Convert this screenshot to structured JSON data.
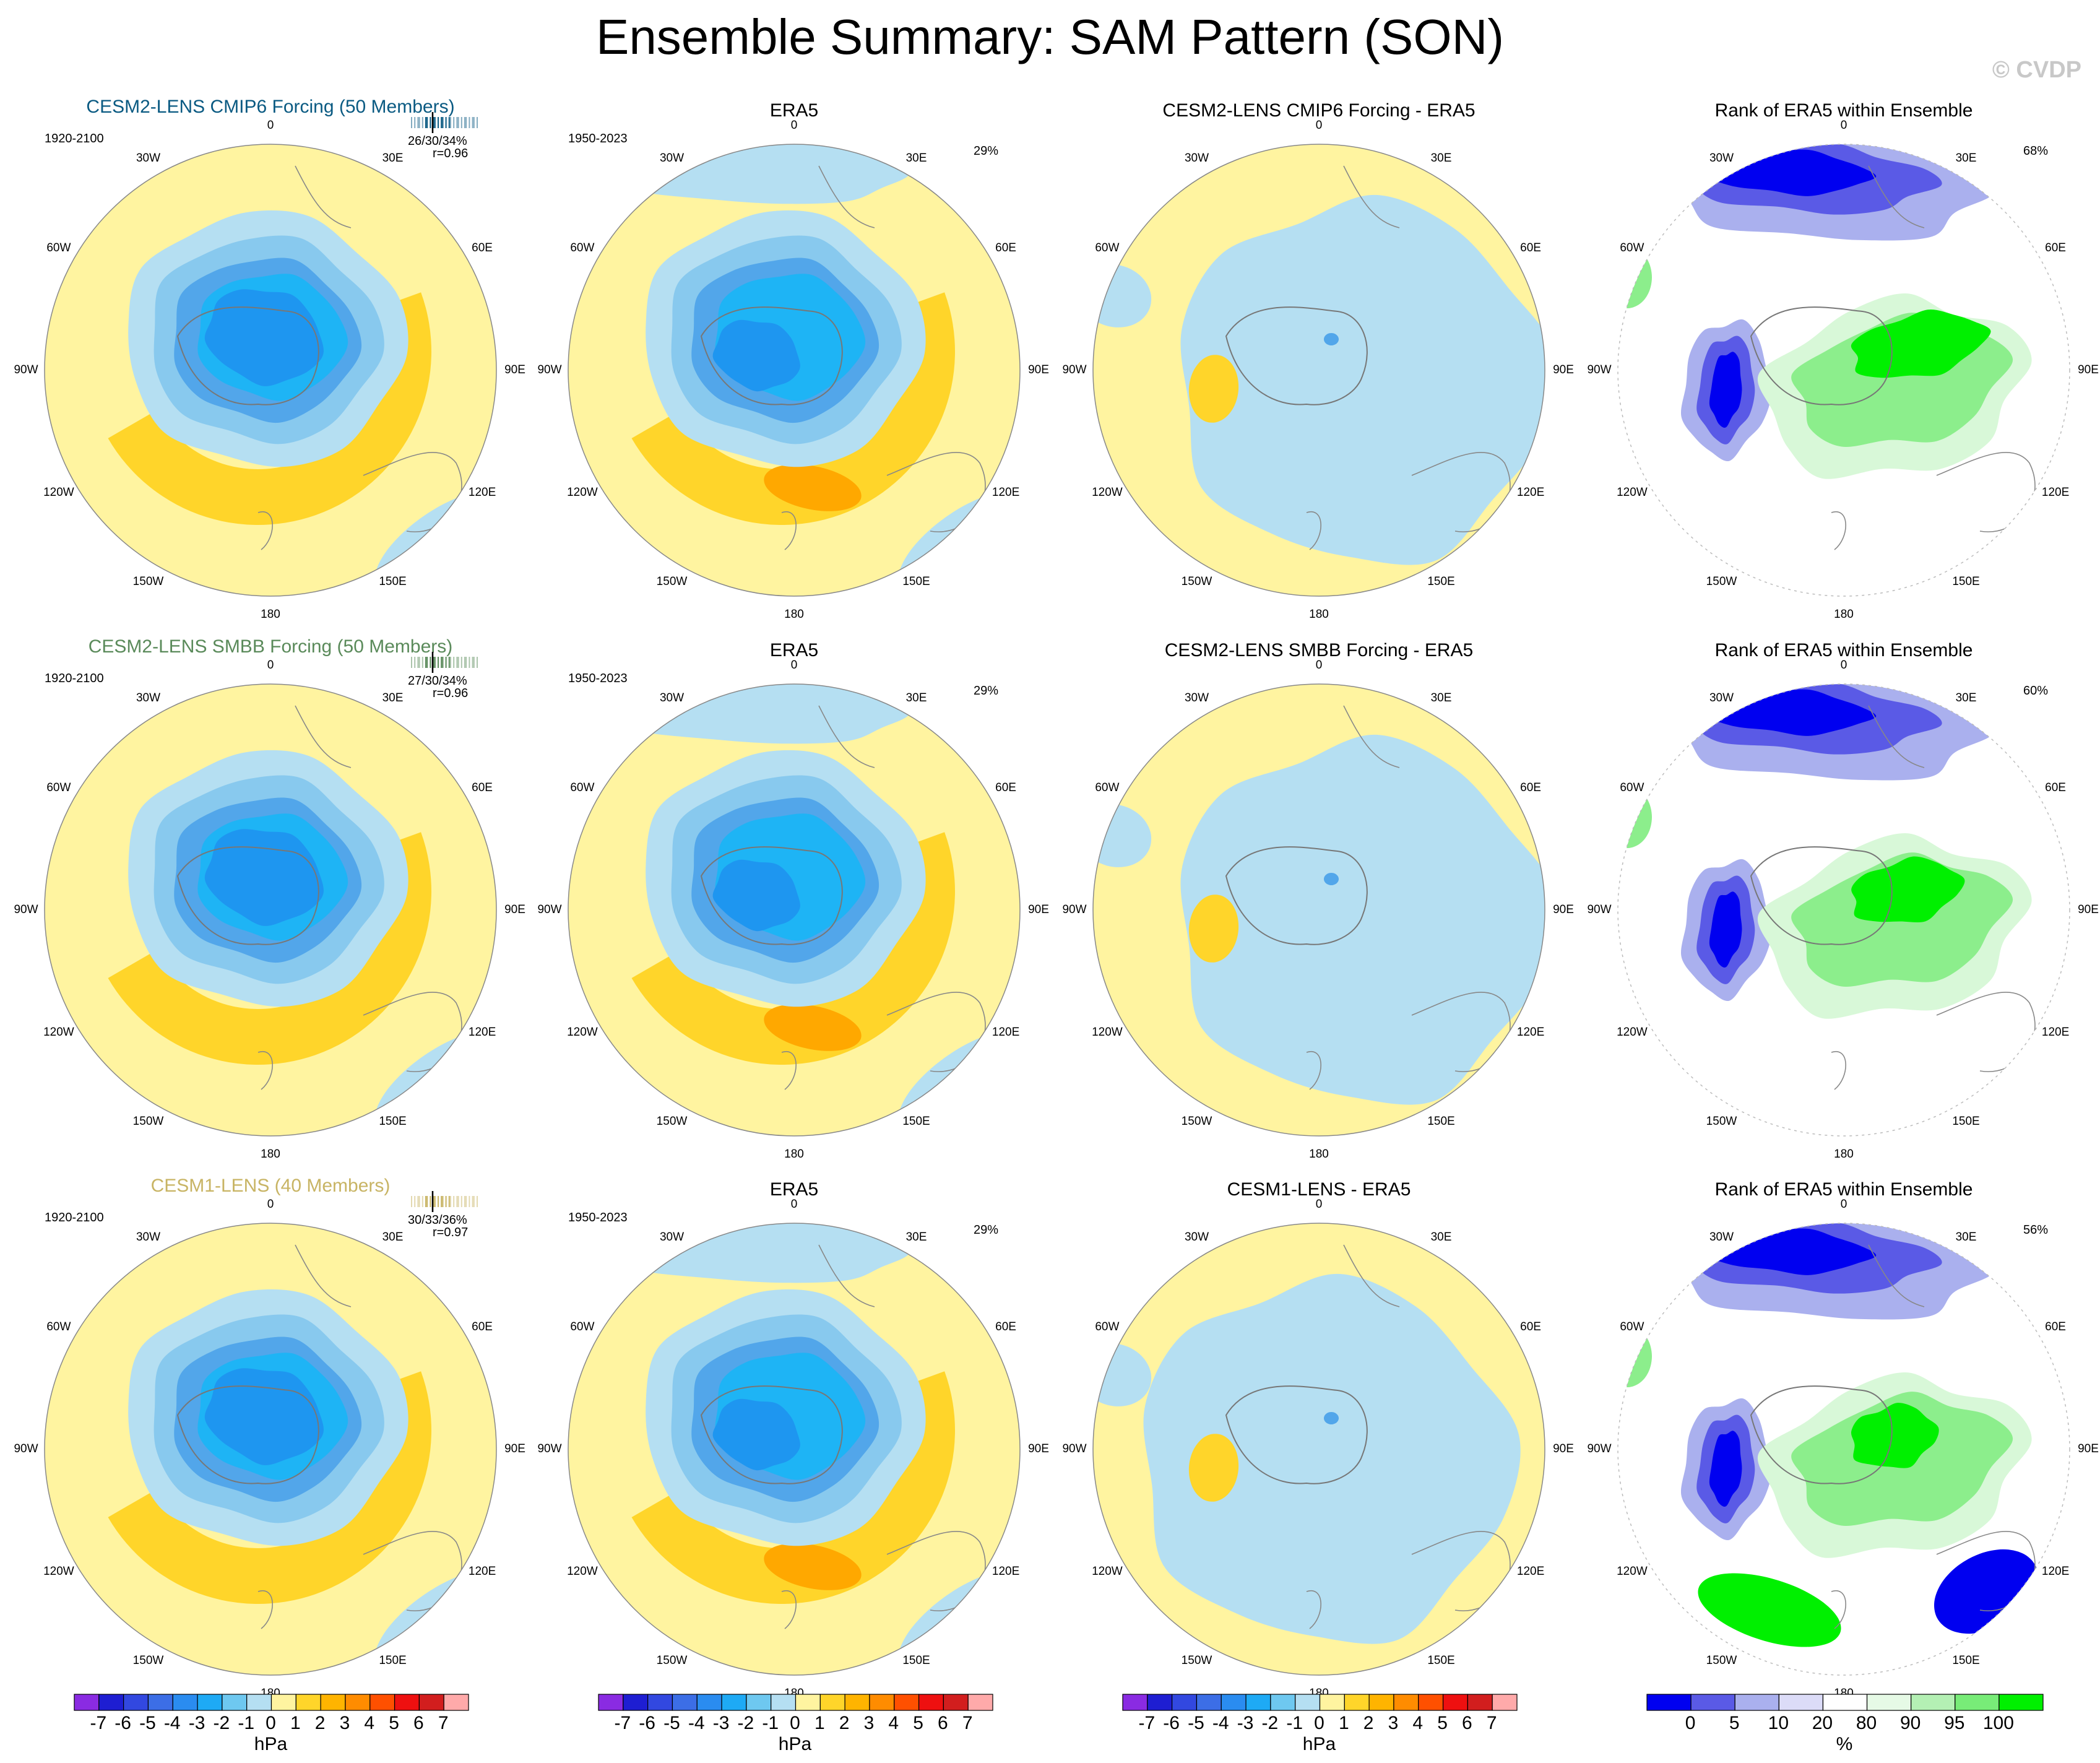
{
  "title": "Ensemble Summary: SAM Pattern (SON)",
  "watermark": "© CVDP",
  "colors": {
    "neg": "#b5dff2",
    "pos": "#fff4a0",
    "c_neg1": "#88c9ee",
    "c_neg2": "#52a6ea",
    "c_neg3": "#1eb4f5",
    "c_neg4": "#1e96f0",
    "c_pos2": "#ffd52a",
    "c_pos3": "#ffa800",
    "rank_b1": "#0000f0",
    "rank_b2": "#5a5ae6",
    "rank_b3": "#aab0ee",
    "rank_g1": "#00f000",
    "rank_g2": "#8cee8c",
    "rank_g3": "#d8f8d8",
    "title_cmip6": "#0a5a82",
    "title_smbb": "#5a8a5a",
    "title_cesm1": "#c8b464"
  },
  "lon_labels": [
    "0",
    "30E",
    "60E",
    "90E",
    "120E",
    "150E",
    "180",
    "150W",
    "120W",
    "90W",
    "60W",
    "30W"
  ],
  "rows": [
    {
      "model": {
        "title": "CESM2-LENS CMIP6 Forcing (50 Members)",
        "period": "1920-2100",
        "stats": "26/30/34%",
        "corr": "r=0.96",
        "color": "title_cmip6"
      },
      "era5": {
        "title": "ERA5",
        "period": "1950-2023",
        "pct": "29%"
      },
      "diff": {
        "title": "CESM2-LENS CMIP6 Forcing - ERA5"
      },
      "rank": {
        "title": "Rank of ERA5 within Ensemble",
        "pct": "68%"
      }
    },
    {
      "model": {
        "title": "CESM2-LENS SMBB Forcing (50 Members)",
        "period": "1920-2100",
        "stats": "27/30/34%",
        "corr": "r=0.96",
        "color": "title_smbb"
      },
      "era5": {
        "title": "ERA5",
        "period": "1950-2023",
        "pct": "29%"
      },
      "diff": {
        "title": "CESM2-LENS SMBB Forcing - ERA5"
      },
      "rank": {
        "title": "Rank of ERA5 within Ensemble",
        "pct": "60%"
      }
    },
    {
      "model": {
        "title": "CESM1-LENS (40 Members)",
        "period": "1920-2100",
        "stats": "30/33/36%",
        "corr": "r=0.97",
        "color": "title_cesm1"
      },
      "era5": {
        "title": "ERA5",
        "period": "1950-2023",
        "pct": "29%"
      },
      "diff": {
        "title": "CESM1-LENS - ERA5"
      },
      "rank": {
        "title": "Rank of ERA5 within Ensemble",
        "pct": "56%"
      }
    }
  ],
  "colorbars": {
    "hpa": {
      "unit": "hPa",
      "ticks": [
        "-7",
        "-6",
        "-5",
        "-4",
        "-3",
        "-2",
        "-1",
        "0",
        "1",
        "2",
        "3",
        "4",
        "5",
        "6",
        "7"
      ],
      "colors": [
        "#8a2be2",
        "#1e1ed2",
        "#3248e0",
        "#3c6ee6",
        "#2a8cf0",
        "#1eaaf5",
        "#6ec8f0",
        "#b5dff2",
        "#fff4a0",
        "#ffd52a",
        "#ffb400",
        "#ff8c00",
        "#ff5000",
        "#ee1010",
        "#d21e1e",
        "#ffaaaa"
      ]
    },
    "rank": {
      "unit": "%",
      "ticks": [
        "0",
        "5",
        "10",
        "20",
        "80",
        "90",
        "95",
        "100"
      ],
      "colors": [
        "#0000f0",
        "#5a5ae6",
        "#aab0ee",
        "#dcdcf8",
        "#ffffff",
        "#e6fae6",
        "#b4f0b4",
        "#78ec78",
        "#00f000"
      ]
    }
  },
  "chart_data": {
    "type": "heatmap",
    "title": "Ensemble Summary: SAM Pattern (SON)",
    "projection": "south polar stereographic",
    "panels": [
      {
        "row": 1,
        "col": 1,
        "title": "CESM2-LENS CMIP6 Forcing (50 Members)",
        "period": "1920-2100",
        "variance_explained": "26/30/34%",
        "pattern_correlation": 0.96,
        "field": "SAM pattern (hPa)",
        "min_contour": -5,
        "max_contour": 2
      },
      {
        "row": 1,
        "col": 2,
        "title": "ERA5",
        "period": "1950-2023",
        "variance_explained": "29%",
        "field": "SAM pattern (hPa)",
        "min_contour": -5,
        "max_contour": 3
      },
      {
        "row": 1,
        "col": 3,
        "title": "CESM2-LENS CMIP6 Forcing - ERA5",
        "field": "difference (hPa)",
        "min_contour": -1,
        "max_contour": 1
      },
      {
        "row": 1,
        "col": 4,
        "title": "Rank of ERA5 within Ensemble",
        "pct": "68%",
        "field": "rank (%)"
      },
      {
        "row": 2,
        "col": 1,
        "title": "CESM2-LENS SMBB Forcing (50 Members)",
        "period": "1920-2100",
        "variance_explained": "27/30/34%",
        "pattern_correlation": 0.96,
        "field": "SAM pattern (hPa)"
      },
      {
        "row": 2,
        "col": 2,
        "title": "ERA5",
        "period": "1950-2023",
        "variance_explained": "29%",
        "field": "SAM pattern (hPa)"
      },
      {
        "row": 2,
        "col": 3,
        "title": "CESM2-LENS SMBB Forcing - ERA5",
        "field": "difference (hPa)"
      },
      {
        "row": 2,
        "col": 4,
        "title": "Rank of ERA5 within Ensemble",
        "pct": "60%",
        "field": "rank (%)"
      },
      {
        "row": 3,
        "col": 1,
        "title": "CESM1-LENS (40 Members)",
        "period": "1920-2100",
        "variance_explained": "30/33/36%",
        "pattern_correlation": 0.97,
        "field": "SAM pattern (hPa)"
      },
      {
        "row": 3,
        "col": 2,
        "title": "ERA5",
        "period": "1950-2023",
        "variance_explained": "29%",
        "field": "SAM pattern (hPa)"
      },
      {
        "row": 3,
        "col": 3,
        "title": "CESM1-LENS - ERA5",
        "field": "difference (hPa)"
      },
      {
        "row": 3,
        "col": 4,
        "title": "Rank of ERA5 within Ensemble",
        "pct": "56%",
        "field": "rank (%)"
      }
    ],
    "colorbar_hpa_levels": [
      -7,
      -6,
      -5,
      -4,
      -3,
      -2,
      -1,
      0,
      1,
      2,
      3,
      4,
      5,
      6,
      7
    ],
    "colorbar_rank_levels": [
      0,
      5,
      10,
      20,
      80,
      90,
      95,
      100
    ]
  }
}
